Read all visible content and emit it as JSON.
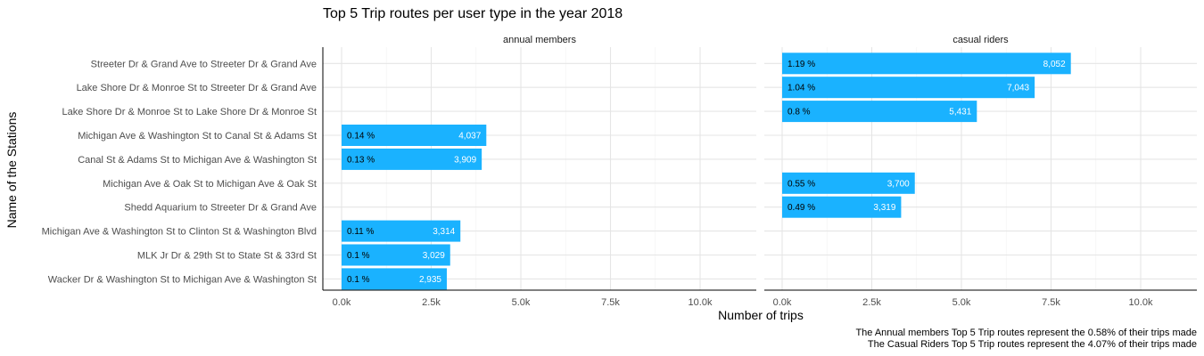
{
  "chart_data": {
    "type": "bar",
    "orientation": "horizontal",
    "title": "Top 5 Trip routes per user type in the year 2018",
    "xlabel": "Number of trips",
    "ylabel": "Name of the Stations",
    "xlim": [
      0,
      11000
    ],
    "x_ticks": [
      0,
      2500,
      5000,
      7500,
      10000
    ],
    "x_tick_labels": [
      "0.0k",
      "2.5k",
      "5.0k",
      "7.5k",
      "10.0k"
    ],
    "grid": true,
    "bar_color": "#1AB2FF",
    "categories": [
      "Streeter Dr & Grand Ave to Streeter Dr & Grand Ave",
      "Lake Shore Dr & Monroe St to Streeter Dr & Grand Ave",
      "Lake Shore Dr & Monroe St to Lake Shore Dr & Monroe St",
      "Michigan Ave & Washington St to Canal St & Adams St",
      "Canal St & Adams St to Michigan Ave & Washington St",
      "Michigan Ave & Oak St to Michigan Ave & Oak St",
      "Shedd Aquarium to Streeter Dr & Grand Ave",
      "Michigan Ave & Washington St to Clinton St & Washington Blvd",
      "MLK Jr Dr & 29th St to State St & 33rd St",
      "Wacker Dr & Washington St to Michigan Ave & Washington St"
    ],
    "panels": [
      {
        "name": "annual members",
        "values": [
          null,
          null,
          null,
          4037,
          3909,
          null,
          null,
          3314,
          3029,
          2935
        ],
        "value_labels": [
          null,
          null,
          null,
          "4,037",
          "3,909",
          null,
          null,
          "3,314",
          "3,029",
          "2,935"
        ],
        "pct_labels": [
          null,
          null,
          null,
          "0.14 %",
          "0.13 %",
          null,
          null,
          "0.11 %",
          "0.1 %",
          "0.1 %"
        ]
      },
      {
        "name": "casual riders",
        "values": [
          8052,
          7043,
          5431,
          null,
          null,
          3700,
          3319,
          null,
          null,
          null
        ],
        "value_labels": [
          "8,052",
          "7,043",
          "5,431",
          null,
          null,
          "3,700",
          "3,319",
          null,
          null,
          null
        ],
        "pct_labels": [
          "1.19 %",
          "1.04 %",
          "0.8 %",
          null,
          null,
          "0.55 %",
          "0.49 %",
          null,
          null,
          null
        ]
      }
    ],
    "captions": [
      "The Annual members Top 5 Trip routes represent the 0.58% of their trips made",
      "The Casual Riders Top 5 Trip routes represent the 4.07% of their trips made"
    ]
  }
}
